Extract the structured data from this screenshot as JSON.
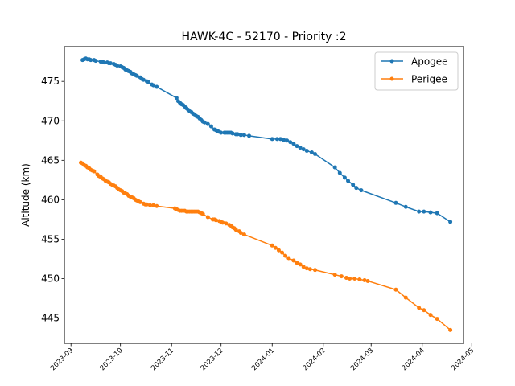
{
  "chart_data": {
    "type": "line",
    "title": "HAWK-4C - 52170 - Priority :2",
    "xlabel": "",
    "ylabel": "Altitude (km)",
    "x_type": "date",
    "xlim": [
      "2023-08-28",
      "2024-04-26"
    ],
    "ylim": [
      441.8,
      479.4
    ],
    "x_ticks": [
      "2023-09-01",
      "2023-10-01",
      "2023-11-01",
      "2023-12-01",
      "2024-01-01",
      "2024-02-01",
      "2024-03-01",
      "2024-04-01",
      "2024-05-01"
    ],
    "x_tick_labels": [
      "2023-09",
      "2023-10",
      "2023-11",
      "2023-12",
      "2024-01",
      "2024-02",
      "2024-03",
      "2024-04",
      "2024-05"
    ],
    "y_ticks": [
      445,
      450,
      455,
      460,
      465,
      470,
      475
    ],
    "y_tick_labels": [
      "445",
      "450",
      "455",
      "460",
      "465",
      "470",
      "475"
    ],
    "grid": false,
    "legend_position": "top-right",
    "series": [
      {
        "name": "Apogee",
        "color": "#1f77b4",
        "marker": "circle",
        "points": [
          [
            "2023-09-08",
            477.7
          ],
          [
            "2023-09-09",
            477.8
          ],
          [
            "2023-09-10",
            477.9
          ],
          [
            "2023-09-11",
            477.8
          ],
          [
            "2023-09-12",
            477.8
          ],
          [
            "2023-09-13",
            477.7
          ],
          [
            "2023-09-15",
            477.7
          ],
          [
            "2023-09-16",
            477.6
          ],
          [
            "2023-09-19",
            477.5
          ],
          [
            "2023-09-20",
            477.5
          ],
          [
            "2023-09-21",
            477.4
          ],
          [
            "2023-09-23",
            477.4
          ],
          [
            "2023-09-24",
            477.3
          ],
          [
            "2023-09-25",
            477.3
          ],
          [
            "2023-09-27",
            477.2
          ],
          [
            "2023-09-28",
            477.1
          ],
          [
            "2023-09-29",
            477.0
          ],
          [
            "2023-10-01",
            476.9
          ],
          [
            "2023-10-02",
            476.8
          ],
          [
            "2023-10-03",
            476.7
          ],
          [
            "2023-10-04",
            476.5
          ],
          [
            "2023-10-05",
            476.4
          ],
          [
            "2023-10-06",
            476.3
          ],
          [
            "2023-10-07",
            476.2
          ],
          [
            "2023-10-08",
            476.0
          ],
          [
            "2023-10-09",
            475.9
          ],
          [
            "2023-10-10",
            475.8
          ],
          [
            "2023-10-11",
            475.7
          ],
          [
            "2023-10-13",
            475.5
          ],
          [
            "2023-10-14",
            475.3
          ],
          [
            "2023-10-15",
            475.2
          ],
          [
            "2023-10-17",
            475.0
          ],
          [
            "2023-10-18",
            474.9
          ],
          [
            "2023-10-20",
            474.6
          ],
          [
            "2023-10-21",
            474.5
          ],
          [
            "2023-10-23",
            474.3
          ],
          [
            "2023-11-04",
            472.9
          ],
          [
            "2023-11-05",
            472.5
          ],
          [
            "2023-11-06",
            472.3
          ],
          [
            "2023-11-07",
            472.1
          ],
          [
            "2023-11-08",
            472.0
          ],
          [
            "2023-11-09",
            471.8
          ],
          [
            "2023-11-10",
            471.6
          ],
          [
            "2023-11-11",
            471.4
          ],
          [
            "2023-11-12",
            471.2
          ],
          [
            "2023-11-13",
            471.1
          ],
          [
            "2023-11-14",
            470.9
          ],
          [
            "2023-11-15",
            470.8
          ],
          [
            "2023-11-16",
            470.6
          ],
          [
            "2023-11-17",
            470.5
          ],
          [
            "2023-11-18",
            470.3
          ],
          [
            "2023-11-19",
            470.1
          ],
          [
            "2023-11-20",
            469.9
          ],
          [
            "2023-11-21",
            469.8
          ],
          [
            "2023-11-23",
            469.6
          ],
          [
            "2023-11-25",
            469.3
          ],
          [
            "2023-11-27",
            468.9
          ],
          [
            "2023-11-28",
            468.8
          ],
          [
            "2023-11-29",
            468.7
          ],
          [
            "2023-11-30",
            468.6
          ],
          [
            "2023-12-01",
            468.5
          ],
          [
            "2023-12-03",
            468.5
          ],
          [
            "2023-12-04",
            468.5
          ],
          [
            "2023-12-05",
            468.5
          ],
          [
            "2023-12-06",
            468.5
          ],
          [
            "2023-12-07",
            468.5
          ],
          [
            "2023-12-08",
            468.4
          ],
          [
            "2023-12-10",
            468.3
          ],
          [
            "2023-12-11",
            468.3
          ],
          [
            "2023-12-13",
            468.2
          ],
          [
            "2023-12-15",
            468.2
          ],
          [
            "2023-12-18",
            468.1
          ],
          [
            "2024-01-01",
            467.7
          ],
          [
            "2024-01-04",
            467.7
          ],
          [
            "2024-01-06",
            467.7
          ],
          [
            "2024-01-08",
            467.6
          ],
          [
            "2024-01-10",
            467.5
          ],
          [
            "2024-01-12",
            467.3
          ],
          [
            "2024-01-14",
            467.1
          ],
          [
            "2024-01-16",
            466.8
          ],
          [
            "2024-01-18",
            466.6
          ],
          [
            "2024-01-20",
            466.4
          ],
          [
            "2024-01-22",
            466.2
          ],
          [
            "2024-01-25",
            466.0
          ],
          [
            "2024-01-27",
            465.8
          ],
          [
            "2024-02-08",
            464.1
          ],
          [
            "2024-02-11",
            463.4
          ],
          [
            "2024-02-14",
            462.8
          ],
          [
            "2024-02-16",
            462.4
          ],
          [
            "2024-02-19",
            461.9
          ],
          [
            "2024-02-21",
            461.5
          ],
          [
            "2024-02-24",
            461.2
          ],
          [
            "2024-03-16",
            459.6
          ],
          [
            "2024-03-22",
            459.1
          ],
          [
            "2024-03-30",
            458.5
          ],
          [
            "2024-04-02",
            458.5
          ],
          [
            "2024-04-06",
            458.4
          ],
          [
            "2024-04-10",
            458.3
          ],
          [
            "2024-04-18",
            457.2
          ]
        ]
      },
      {
        "name": "Perigee",
        "color": "#ff7f0e",
        "marker": "circle",
        "points": [
          [
            "2023-09-07",
            464.7
          ],
          [
            "2023-09-08",
            464.6
          ],
          [
            "2023-09-09",
            464.4
          ],
          [
            "2023-09-10",
            464.3
          ],
          [
            "2023-09-11",
            464.1
          ],
          [
            "2023-09-12",
            464.0
          ],
          [
            "2023-09-13",
            463.8
          ],
          [
            "2023-09-14",
            463.7
          ],
          [
            "2023-09-15",
            463.6
          ],
          [
            "2023-09-17",
            463.2
          ],
          [
            "2023-09-18",
            463.0
          ],
          [
            "2023-09-19",
            462.9
          ],
          [
            "2023-09-20",
            462.7
          ],
          [
            "2023-09-21",
            462.6
          ],
          [
            "2023-09-22",
            462.4
          ],
          [
            "2023-09-23",
            462.3
          ],
          [
            "2023-09-24",
            462.2
          ],
          [
            "2023-09-25",
            462.0
          ],
          [
            "2023-09-26",
            461.9
          ],
          [
            "2023-09-27",
            461.8
          ],
          [
            "2023-09-28",
            461.7
          ],
          [
            "2023-09-29",
            461.5
          ],
          [
            "2023-09-30",
            461.3
          ],
          [
            "2023-10-01",
            461.2
          ],
          [
            "2023-10-02",
            461.1
          ],
          [
            "2023-10-03",
            460.9
          ],
          [
            "2023-10-04",
            460.8
          ],
          [
            "2023-10-05",
            460.7
          ],
          [
            "2023-10-06",
            460.5
          ],
          [
            "2023-10-07",
            460.4
          ],
          [
            "2023-10-08",
            460.3
          ],
          [
            "2023-10-09",
            460.2
          ],
          [
            "2023-10-10",
            460.0
          ],
          [
            "2023-10-11",
            459.9
          ],
          [
            "2023-10-12",
            459.8
          ],
          [
            "2023-10-13",
            459.7
          ],
          [
            "2023-10-15",
            459.5
          ],
          [
            "2023-10-16",
            459.4
          ],
          [
            "2023-10-17",
            459.4
          ],
          [
            "2023-10-19",
            459.3
          ],
          [
            "2023-10-21",
            459.3
          ],
          [
            "2023-10-23",
            459.2
          ],
          [
            "2023-11-03",
            458.9
          ],
          [
            "2023-11-04",
            458.8
          ],
          [
            "2023-11-05",
            458.7
          ],
          [
            "2023-11-06",
            458.6
          ],
          [
            "2023-11-07",
            458.6
          ],
          [
            "2023-11-08",
            458.6
          ],
          [
            "2023-11-09",
            458.6
          ],
          [
            "2023-11-10",
            458.5
          ],
          [
            "2023-11-11",
            458.5
          ],
          [
            "2023-11-12",
            458.5
          ],
          [
            "2023-11-13",
            458.5
          ],
          [
            "2023-11-14",
            458.5
          ],
          [
            "2023-11-15",
            458.5
          ],
          [
            "2023-11-16",
            458.5
          ],
          [
            "2023-11-17",
            458.5
          ],
          [
            "2023-11-18",
            458.4
          ],
          [
            "2023-11-19",
            458.3
          ],
          [
            "2023-11-20",
            458.2
          ],
          [
            "2023-11-23",
            457.8
          ],
          [
            "2023-11-26",
            457.5
          ],
          [
            "2023-11-27",
            457.5
          ],
          [
            "2023-11-28",
            457.4
          ],
          [
            "2023-11-30",
            457.3
          ],
          [
            "2023-12-01",
            457.2
          ],
          [
            "2023-12-02",
            457.1
          ],
          [
            "2023-12-04",
            457.0
          ],
          [
            "2023-12-06",
            456.8
          ],
          [
            "2023-12-07",
            456.7
          ],
          [
            "2023-12-08",
            456.5
          ],
          [
            "2023-12-09",
            456.4
          ],
          [
            "2023-12-10",
            456.2
          ],
          [
            "2023-12-12",
            456.0
          ],
          [
            "2023-12-13",
            455.8
          ],
          [
            "2023-12-15",
            455.6
          ],
          [
            "2024-01-01",
            454.2
          ],
          [
            "2024-01-03",
            453.9
          ],
          [
            "2024-01-05",
            453.6
          ],
          [
            "2024-01-07",
            453.3
          ],
          [
            "2024-01-09",
            452.9
          ],
          [
            "2024-01-11",
            452.6
          ],
          [
            "2024-01-14",
            452.3
          ],
          [
            "2024-01-16",
            452.0
          ],
          [
            "2024-01-18",
            451.8
          ],
          [
            "2024-01-20",
            451.5
          ],
          [
            "2024-01-22",
            451.3
          ],
          [
            "2024-01-24",
            451.2
          ],
          [
            "2024-01-27",
            451.1
          ],
          [
            "2024-02-08",
            450.5
          ],
          [
            "2024-02-12",
            450.3
          ],
          [
            "2024-02-15",
            450.1
          ],
          [
            "2024-02-17",
            450.0
          ],
          [
            "2024-02-20",
            450.0
          ],
          [
            "2024-02-23",
            449.9
          ],
          [
            "2024-02-26",
            449.8
          ],
          [
            "2024-02-28",
            449.7
          ],
          [
            "2024-03-16",
            448.6
          ],
          [
            "2024-03-22",
            447.6
          ],
          [
            "2024-03-30",
            446.3
          ],
          [
            "2024-04-02",
            446.0
          ],
          [
            "2024-04-06",
            445.4
          ],
          [
            "2024-04-10",
            444.9
          ],
          [
            "2024-04-18",
            443.5
          ]
        ]
      }
    ]
  }
}
